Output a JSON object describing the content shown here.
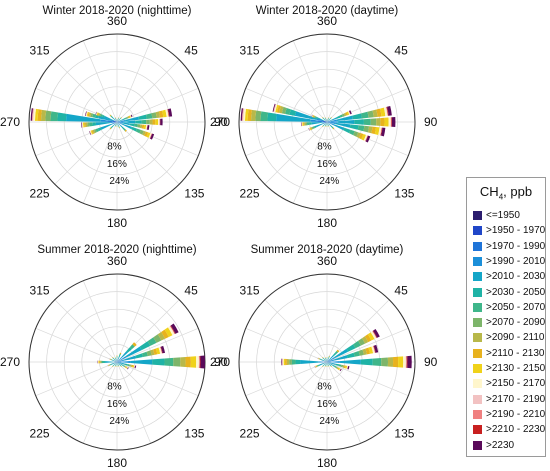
{
  "chart_data": [
    {
      "type": "wind-rose",
      "title": "Winter 2018-2020 (nighttime)",
      "direction_labels": [
        "360",
        "45",
        "90",
        "135",
        "180",
        "225",
        "270",
        "315"
      ],
      "radial_tick_labels": [
        "8%",
        "16%",
        "24%"
      ],
      "radial_max_percent": 27,
      "sectors": [
        {
          "direction": 0,
          "total_percent": 1.0
        },
        {
          "direction": 22.5,
          "total_percent": 1.5
        },
        {
          "direction": 45,
          "total_percent": 2.0
        },
        {
          "direction": 67.5,
          "total_percent": 5.0
        },
        {
          "direction": 80,
          "total_percent": 17.0
        },
        {
          "direction": 90,
          "total_percent": 14.0
        },
        {
          "direction": 100,
          "total_percent": 10.0
        },
        {
          "direction": 112.5,
          "total_percent": 12.0
        },
        {
          "direction": 135,
          "total_percent": 4.0
        },
        {
          "direction": 157.5,
          "total_percent": 2.0
        },
        {
          "direction": 180,
          "total_percent": 1.5
        },
        {
          "direction": 202.5,
          "total_percent": 1.5
        },
        {
          "direction": 225,
          "total_percent": 3.0
        },
        {
          "direction": 247.5,
          "total_percent": 9.0
        },
        {
          "direction": 265,
          "total_percent": 11.0
        },
        {
          "direction": 275,
          "total_percent": 26.5
        },
        {
          "direction": 285,
          "total_percent": 10.0
        },
        {
          "direction": 292.5,
          "total_percent": 7.0
        },
        {
          "direction": 315,
          "total_percent": 3.0
        },
        {
          "direction": 337.5,
          "total_percent": 1.5
        }
      ]
    },
    {
      "type": "wind-rose",
      "title": "Winter 2018-2020 (daytime)",
      "direction_labels": [
        "360",
        "45",
        "90",
        "135",
        "180",
        "225",
        "270",
        "315"
      ],
      "radial_tick_labels": [
        "8%",
        "16%",
        "24%"
      ],
      "radial_max_percent": 27,
      "sectors": [
        {
          "direction": 0,
          "total_percent": 1.0
        },
        {
          "direction": 22.5,
          "total_percent": 1.5
        },
        {
          "direction": 45,
          "total_percent": 2.0
        },
        {
          "direction": 67.5,
          "total_percent": 8.0
        },
        {
          "direction": 80,
          "total_percent": 20.0
        },
        {
          "direction": 90,
          "total_percent": 21.0
        },
        {
          "direction": 100,
          "total_percent": 18.0
        },
        {
          "direction": 112.5,
          "total_percent": 14.0
        },
        {
          "direction": 135,
          "total_percent": 3.0
        },
        {
          "direction": 157.5,
          "total_percent": 1.5
        },
        {
          "direction": 180,
          "total_percent": 1.5
        },
        {
          "direction": 202.5,
          "total_percent": 1.5
        },
        {
          "direction": 225,
          "total_percent": 2.0
        },
        {
          "direction": 247.5,
          "total_percent": 6.0
        },
        {
          "direction": 265,
          "total_percent": 8.0
        },
        {
          "direction": 275,
          "total_percent": 26.5
        },
        {
          "direction": 285,
          "total_percent": 17.0
        },
        {
          "direction": 292.5,
          "total_percent": 5.0
        },
        {
          "direction": 315,
          "total_percent": 2.0
        },
        {
          "direction": 337.5,
          "total_percent": 1.5
        }
      ]
    },
    {
      "type": "wind-rose",
      "title": "Summer 2018-2020 (nighttime)",
      "direction_labels": [
        "360",
        "45",
        "90",
        "135",
        "180",
        "225",
        "270",
        "315"
      ],
      "radial_tick_labels": [
        "8%",
        "16%",
        "24%"
      ],
      "radial_max_percent": 27,
      "sectors": [
        {
          "direction": 0,
          "total_percent": 2.0
        },
        {
          "direction": 22.5,
          "total_percent": 3.0
        },
        {
          "direction": 45,
          "total_percent": 8.0
        },
        {
          "direction": 60,
          "total_percent": 21.0
        },
        {
          "direction": 75,
          "total_percent": 15.0
        },
        {
          "direction": 90,
          "total_percent": 27.0
        },
        {
          "direction": 105,
          "total_percent": 6.0
        },
        {
          "direction": 120,
          "total_percent": 4.0
        },
        {
          "direction": 135,
          "total_percent": 2.0
        },
        {
          "direction": 157.5,
          "total_percent": 1.5
        },
        {
          "direction": 180,
          "total_percent": 1.5
        },
        {
          "direction": 202.5,
          "total_percent": 1.5
        },
        {
          "direction": 225,
          "total_percent": 2.0
        },
        {
          "direction": 247.5,
          "total_percent": 3.0
        },
        {
          "direction": 270,
          "total_percent": 6.0
        },
        {
          "direction": 292.5,
          "total_percent": 2.5
        },
        {
          "direction": 315,
          "total_percent": 2.0
        },
        {
          "direction": 337.5,
          "total_percent": 1.5
        }
      ]
    },
    {
      "type": "wind-rose",
      "title": "Summer 2018-2020 (daytime)",
      "direction_labels": [
        "360",
        "45",
        "90",
        "135",
        "180",
        "225",
        "270",
        "315"
      ],
      "radial_tick_labels": [
        "8%",
        "16%",
        "24%"
      ],
      "radial_max_percent": 27,
      "sectors": [
        {
          "direction": 0,
          "total_percent": 1.5
        },
        {
          "direction": 22.5,
          "total_percent": 2.0
        },
        {
          "direction": 45,
          "total_percent": 5.0
        },
        {
          "direction": 60,
          "total_percent": 18.0
        },
        {
          "direction": 75,
          "total_percent": 16.0
        },
        {
          "direction": 90,
          "total_percent": 26.0
        },
        {
          "direction": 105,
          "total_percent": 7.0
        },
        {
          "direction": 120,
          "total_percent": 5.0
        },
        {
          "direction": 135,
          "total_percent": 2.0
        },
        {
          "direction": 157.5,
          "total_percent": 1.5
        },
        {
          "direction": 180,
          "total_percent": 1.5
        },
        {
          "direction": 202.5,
          "total_percent": 1.5
        },
        {
          "direction": 225,
          "total_percent": 2.0
        },
        {
          "direction": 247.5,
          "total_percent": 4.0
        },
        {
          "direction": 270,
          "total_percent": 14.0
        },
        {
          "direction": 292.5,
          "total_percent": 3.0
        },
        {
          "direction": 315,
          "total_percent": 2.0
        },
        {
          "direction": 337.5,
          "total_percent": 1.5
        }
      ]
    }
  ],
  "legend": {
    "title": "CH",
    "title_sub": "4",
    "title_suffix": ", ppb",
    "items": [
      {
        "label": "<=1950",
        "color": "#2b1d6e"
      },
      {
        "label": ">1950 - 1970",
        "color": "#2046c8"
      },
      {
        "label": ">1970 - 1990",
        "color": "#1f74d8"
      },
      {
        "label": ">1990 - 2010",
        "color": "#1b8fd9"
      },
      {
        "label": ">2010 - 2030",
        "color": "#14a6c8"
      },
      {
        "label": ">2030 - 2050",
        "color": "#1fb3a6"
      },
      {
        "label": ">2050 - 2070",
        "color": "#3fb68a"
      },
      {
        "label": ">2070 - 2090",
        "color": "#7db56a"
      },
      {
        "label": ">2090 - 2110",
        "color": "#b8b84a"
      },
      {
        "label": ">2110 - 2130",
        "color": "#e8b21e"
      },
      {
        "label": ">2130 - 2150",
        "color": "#f0d21a"
      },
      {
        "label": ">2150 - 2170",
        "color": "#fff6cc"
      },
      {
        "label": ">2170 - 2190",
        "color": "#f2c2c2"
      },
      {
        "label": ">2190 - 2210",
        "color": "#f08080"
      },
      {
        "label": ">2210 - 2230",
        "color": "#c82020"
      },
      {
        "label": ">2230",
        "color": "#5a0a5a"
      }
    ]
  }
}
